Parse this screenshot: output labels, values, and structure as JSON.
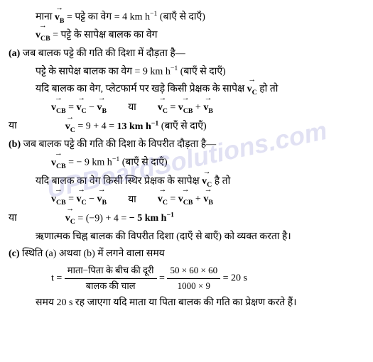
{
  "watermark": "UPBoardSolutions.com",
  "l1a": "माना ",
  "l1b": " = पट्टे का वेग = 4 km h",
  "l1c": " (बाएँ से दाएँ)",
  "l2a": " = पट्टे के सापेक्ष बालक का वेग",
  "a_label": "(a)",
  "a1": " जब बालक पट्टे की गति की दिशा में दौड़ता है—",
  "a2a": "पट्टे के सापेक्ष बालक का वेग = 9 km h",
  "a2b": " (बाएँ से दाएँ)",
  "a3a": "यदि बालक का वेग, प्लेटफार्म पर खड़े किसी प्रेक्षक के सापेक्ष ",
  "a3b": " हो तो",
  "ya": "या",
  "eq_eq": " = ",
  "eq_minus": " − ",
  "eq_plus": " + ",
  "a5a": " = 9 + 4 = ",
  "a5b": "13 km h",
  "a5c": "  (बाएँ से दाएँ)",
  "b_label": "(b)",
  "b1": " जब बालक पट्टे की गति की दिशा के विपरीत दौड़ता है—",
  "b2a": " = − 9 km h",
  "b2b": " (बाएँ से दाएँ)",
  "b3a": "यदि बालक का वेग किसी स्थिर प्रेक्षक के सापेक्ष ",
  "b3b": " है तो",
  "b5a": " = (−9) + 4 = ",
  "b5b": "− 5 km h",
  "b6": "ऋणात्मक चिह्न बालक की विपरीत दिशा (दाएँ से बाएँ) को व्यक्त करता है।",
  "c_label": "(c)",
  "c1": " स्थिति (a) अथवा (b) में लगने वाला समय",
  "c_t": "t = ",
  "c_num1": "माता−पिता के बीच की दूरी",
  "c_den1": "बालक की चाल",
  "c_eq": " = ",
  "c_num2": "50 × 60 × 60",
  "c_den2": "1000 × 9",
  "c_res": " = 20 s",
  "c_last": "समय 20 s रह जाएगा यदि माता या पिता बालक की गति का प्रेक्षण करते हैं।"
}
